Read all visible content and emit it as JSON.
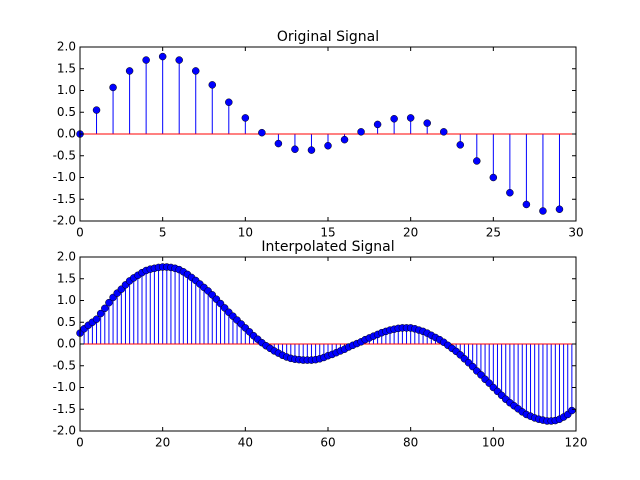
{
  "chart_data": [
    {
      "type": "stem",
      "title": "Original Signal",
      "color": "#0000ff",
      "baseline_color": "#ff0000",
      "x": [
        0,
        1,
        2,
        3,
        4,
        5,
        6,
        7,
        8,
        9,
        10,
        11,
        12,
        13,
        14,
        15,
        16,
        17,
        18,
        19,
        20,
        21,
        22,
        23,
        24,
        25,
        26,
        27,
        28,
        29
      ],
      "values": [
        0.0,
        0.55,
        1.07,
        1.45,
        1.7,
        1.78,
        1.7,
        1.45,
        1.13,
        0.73,
        0.37,
        0.03,
        -0.22,
        -0.35,
        -0.37,
        -0.27,
        -0.13,
        0.05,
        0.22,
        0.35,
        0.37,
        0.25,
        0.05,
        -0.25,
        -0.62,
        -1.0,
        -1.35,
        -1.62,
        -1.77,
        -1.73
      ],
      "xlim": [
        0,
        30
      ],
      "xticks": [
        0,
        5,
        10,
        15,
        20,
        25,
        30
      ],
      "ylim": [
        -2,
        2
      ],
      "yticks": [
        {
          "value": -2,
          "label": "-2.0"
        },
        -1.5,
        {
          "value": -1,
          "label": "-1.0"
        },
        -0.5,
        {
          "value": 0,
          "label": "0.0"
        },
        0.5,
        {
          "value": 1,
          "label": "1.0"
        },
        1.5,
        {
          "value": 2,
          "label": "2.0"
        }
      ]
    },
    {
      "type": "stem",
      "title": "Interpolated Signal",
      "color": "#0000ff",
      "baseline_color": "#ff0000",
      "x": [
        0,
        1,
        2,
        3,
        4,
        5,
        6,
        7,
        8,
        9,
        10,
        11,
        12,
        13,
        14,
        15,
        16,
        17,
        18,
        19,
        20,
        21,
        22,
        23,
        24,
        25,
        26,
        27,
        28,
        29,
        30,
        31,
        32,
        33,
        34,
        35,
        36,
        37,
        38,
        39,
        40,
        41,
        42,
        43,
        44,
        45,
        46,
        47,
        48,
        49,
        50,
        51,
        52,
        53,
        54,
        55,
        56,
        57,
        58,
        59,
        60,
        61,
        62,
        63,
        64,
        65,
        66,
        67,
        68,
        69,
        70,
        71,
        72,
        73,
        74,
        75,
        76,
        77,
        78,
        79,
        80,
        81,
        82,
        83,
        84,
        85,
        86,
        87,
        88,
        89,
        90,
        91,
        92,
        93,
        94,
        95,
        96,
        97,
        98,
        99,
        100,
        101,
        102,
        103,
        104,
        105,
        106,
        107,
        108,
        109,
        110,
        111,
        112,
        113,
        114,
        115,
        116,
        117,
        118,
        119
      ],
      "values": [
        0.25,
        0.35,
        0.43,
        0.5,
        0.57,
        0.7,
        0.82,
        0.95,
        1.07,
        1.17,
        1.26,
        1.36,
        1.45,
        1.52,
        1.58,
        1.64,
        1.69,
        1.72,
        1.74,
        1.76,
        1.77,
        1.77,
        1.76,
        1.74,
        1.71,
        1.66,
        1.6,
        1.53,
        1.46,
        1.38,
        1.3,
        1.22,
        1.13,
        1.03,
        0.93,
        0.83,
        0.73,
        0.64,
        0.55,
        0.46,
        0.37,
        0.28,
        0.19,
        0.11,
        0.03,
        -0.04,
        -0.1,
        -0.16,
        -0.21,
        -0.26,
        -0.3,
        -0.33,
        -0.35,
        -0.36,
        -0.37,
        -0.37,
        -0.37,
        -0.36,
        -0.34,
        -0.31,
        -0.27,
        -0.24,
        -0.2,
        -0.16,
        -0.12,
        -0.07,
        -0.03,
        0.01,
        0.05,
        0.1,
        0.14,
        0.18,
        0.22,
        0.26,
        0.29,
        0.32,
        0.34,
        0.36,
        0.37,
        0.37,
        0.37,
        0.35,
        0.32,
        0.29,
        0.25,
        0.2,
        0.15,
        0.1,
        0.04,
        -0.03,
        -0.1,
        -0.17,
        -0.25,
        -0.34,
        -0.43,
        -0.52,
        -0.62,
        -0.71,
        -0.81,
        -0.9,
        -1.0,
        -1.09,
        -1.18,
        -1.27,
        -1.35,
        -1.42,
        -1.49,
        -1.56,
        -1.62,
        -1.66,
        -1.7,
        -1.73,
        -1.75,
        -1.77,
        -1.77,
        -1.76,
        -1.73,
        -1.68,
        -1.62,
        -1.53
      ],
      "xlim": [
        0,
        120
      ],
      "xticks": [
        0,
        20,
        40,
        60,
        80,
        100,
        120
      ],
      "ylim": [
        -2,
        2
      ],
      "yticks": [
        {
          "value": -2,
          "label": "-2.0"
        },
        -1.5,
        {
          "value": -1,
          "label": "-1.0"
        },
        -0.5,
        {
          "value": 0,
          "label": "0.0"
        },
        0.5,
        {
          "value": 1,
          "label": "1.0"
        },
        1.5,
        {
          "value": 2,
          "label": "2.0"
        }
      ]
    }
  ]
}
